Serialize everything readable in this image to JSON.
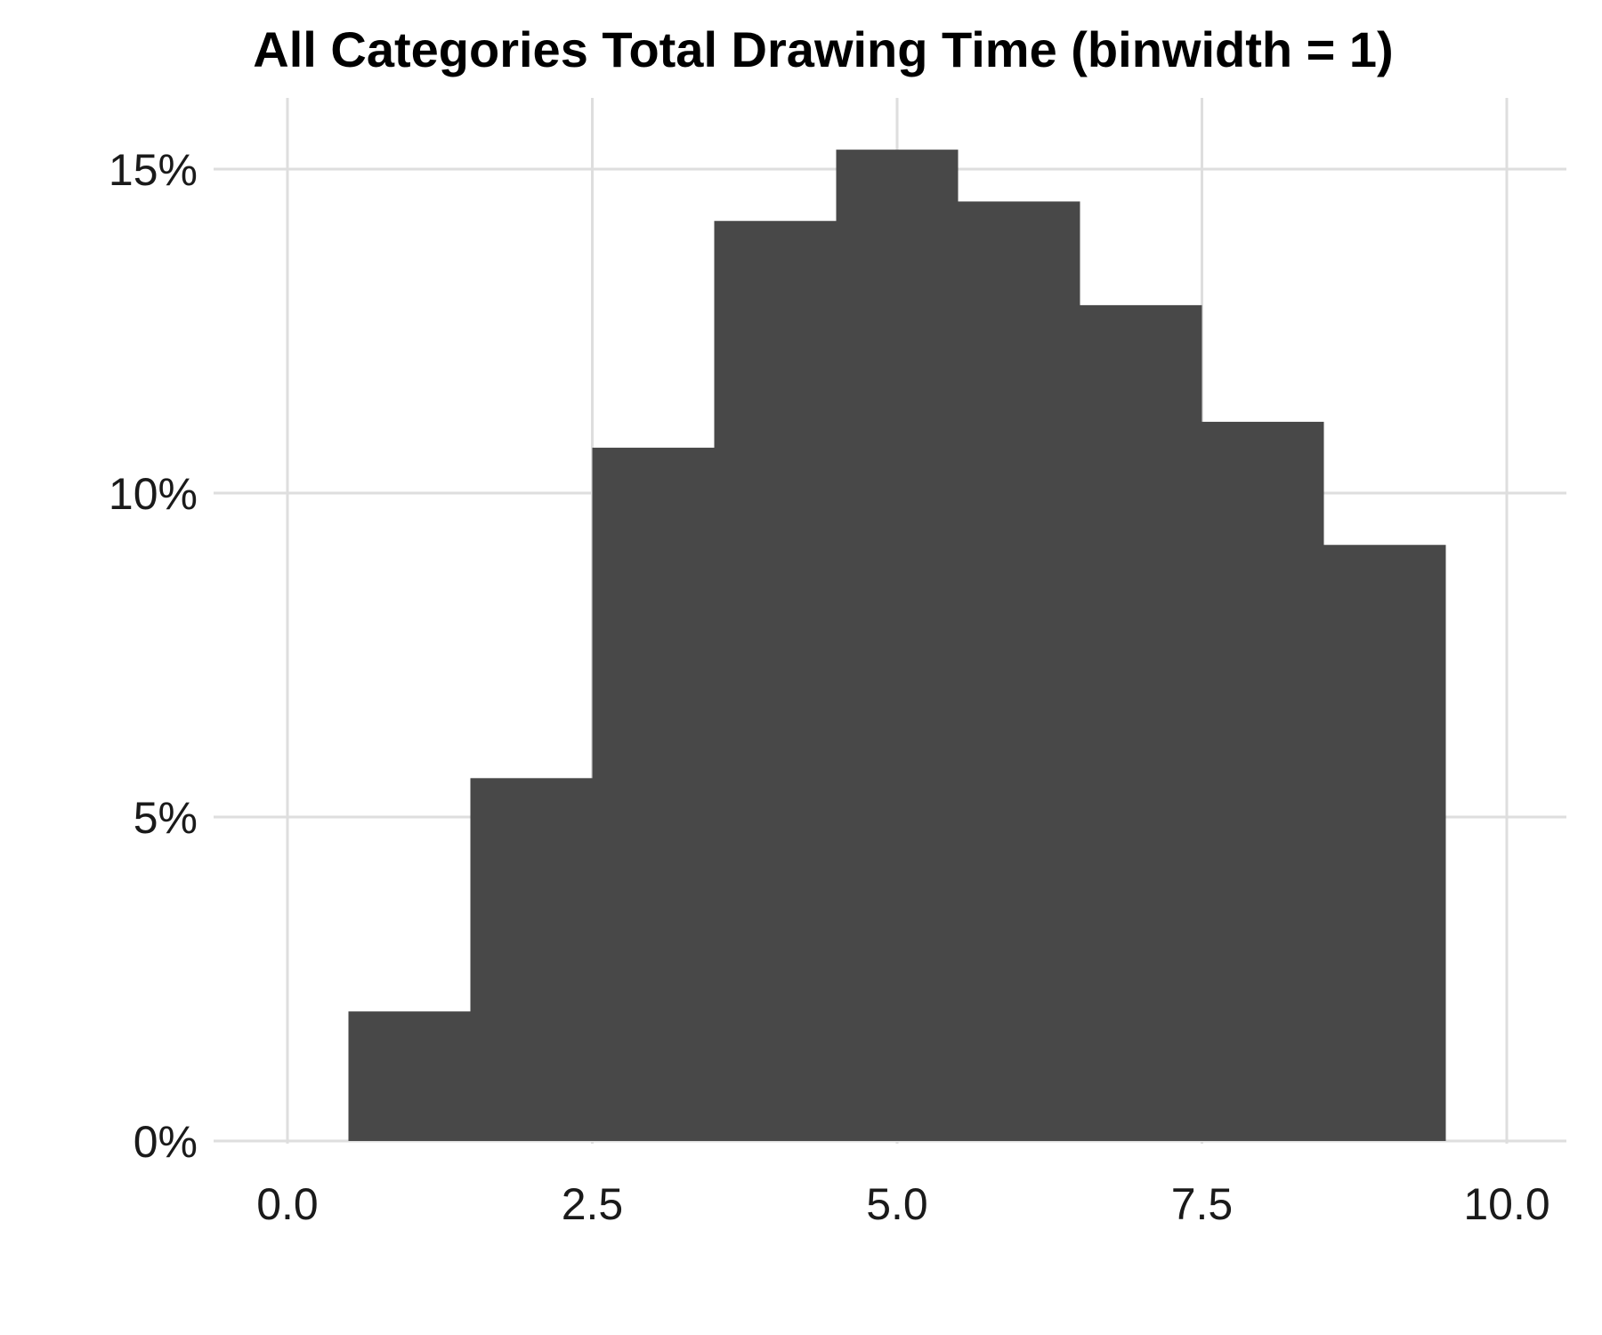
{
  "chart_data": {
    "type": "bar",
    "title": "All Categories Total Drawing Time (binwidth = 1)",
    "xlabel": "",
    "ylabel": "",
    "bin_width": 1,
    "bins": [
      {
        "x": 1,
        "value": 2.0
      },
      {
        "x": 2,
        "value": 5.6
      },
      {
        "x": 3,
        "value": 10.7
      },
      {
        "x": 4,
        "value": 14.2
      },
      {
        "x": 5,
        "value": 15.3
      },
      {
        "x": 6,
        "value": 14.5
      },
      {
        "x": 7,
        "value": 12.9
      },
      {
        "x": 8,
        "value": 11.1
      },
      {
        "x": 9,
        "value": 9.2
      }
    ],
    "xlim": [
      -0.25,
      10.25
    ],
    "ylim": [
      0,
      15.5
    ],
    "x_ticks": [
      0,
      2.5,
      5,
      7.5,
      10
    ],
    "x_tick_labels": [
      "0.0",
      "2.5",
      "5.0",
      "7.5",
      "10.0"
    ],
    "y_ticks": [
      0,
      5,
      10,
      15
    ],
    "y_tick_labels": [
      "0%",
      "5%",
      "10%",
      "15%"
    ],
    "bar_color": "#484848",
    "grid_color": "#dedede",
    "grid": true,
    "legend": "none"
  }
}
